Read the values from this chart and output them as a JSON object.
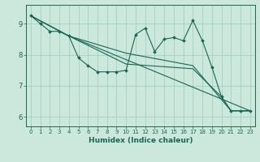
{
  "xlabel": "Humidex (Indice chaleur)",
  "bg_color": "#cce8dd",
  "grid_color": "#99ccbb",
  "line_color": "#1a6655",
  "xlim": [
    -0.5,
    23.5
  ],
  "ylim": [
    5.7,
    9.6
  ],
  "xticks": [
    0,
    1,
    2,
    3,
    4,
    5,
    6,
    7,
    8,
    9,
    10,
    11,
    12,
    13,
    14,
    15,
    16,
    17,
    18,
    19,
    20,
    21,
    22,
    23
  ],
  "yticks": [
    6,
    7,
    8,
    9
  ],
  "line1_x": [
    0,
    1,
    2,
    3,
    4,
    5,
    6,
    7,
    8,
    9,
    10,
    11,
    12,
    13,
    14,
    15,
    16,
    17,
    18,
    19,
    20,
    21,
    22,
    23
  ],
  "line1_y": [
    9.25,
    9.0,
    8.75,
    8.75,
    8.6,
    7.9,
    7.65,
    7.45,
    7.45,
    7.45,
    7.5,
    8.65,
    8.85,
    8.1,
    8.5,
    8.55,
    8.45,
    9.1,
    8.45,
    7.6,
    6.65,
    6.2,
    6.2,
    6.2
  ],
  "line2_x": [
    0,
    4,
    23
  ],
  "line2_y": [
    9.25,
    8.6,
    6.2
  ],
  "line3_x": [
    0,
    4,
    10,
    17,
    21,
    23
  ],
  "line3_y": [
    9.25,
    8.6,
    8.05,
    7.65,
    6.2,
    6.2
  ],
  "line4_x": [
    0,
    4,
    10,
    17,
    20,
    21,
    23
  ],
  "line4_y": [
    9.25,
    8.6,
    7.7,
    7.55,
    6.65,
    6.2,
    6.2
  ]
}
